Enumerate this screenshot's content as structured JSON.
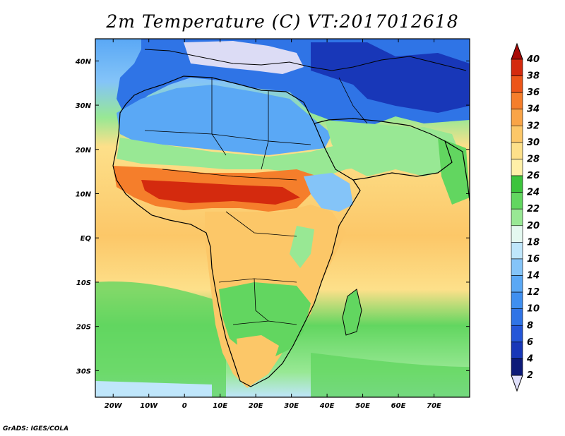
{
  "title": "2m Temperature (C) VT:2017012618",
  "credit": "GrADS: IGES/COLA",
  "map": {
    "region": "Africa and Middle East",
    "lon_range": [
      -25,
      80
    ],
    "lat_range": [
      -36,
      45
    ],
    "lon_ticks": [
      {
        "value": -20,
        "label": "20W"
      },
      {
        "value": -10,
        "label": "10W"
      },
      {
        "value": 0,
        "label": "0"
      },
      {
        "value": 10,
        "label": "10E"
      },
      {
        "value": 20,
        "label": "20E"
      },
      {
        "value": 30,
        "label": "30E"
      },
      {
        "value": 40,
        "label": "40E"
      },
      {
        "value": 50,
        "label": "50E"
      },
      {
        "value": 60,
        "label": "60E"
      },
      {
        "value": 70,
        "label": "70E"
      }
    ],
    "lat_ticks": [
      {
        "value": 40,
        "label": "40N"
      },
      {
        "value": 30,
        "label": "30N"
      },
      {
        "value": 20,
        "label": "20N"
      },
      {
        "value": 10,
        "label": "10N"
      },
      {
        "value": 0,
        "label": "EQ"
      },
      {
        "value": -10,
        "label": "10S"
      },
      {
        "value": -20,
        "label": "20S"
      },
      {
        "value": -30,
        "label": "30S"
      }
    ],
    "colorbar": [
      {
        "label": "2",
        "color": "#0d1a78"
      },
      {
        "label": "4",
        "color": "#1837b8"
      },
      {
        "label": "6",
        "color": "#2456d8"
      },
      {
        "label": "8",
        "color": "#2f74e6"
      },
      {
        "label": "10",
        "color": "#3f8ff0"
      },
      {
        "label": "12",
        "color": "#5aa8f5"
      },
      {
        "label": "14",
        "color": "#84c4f8"
      },
      {
        "label": "16",
        "color": "#bfe6fb"
      },
      {
        "label": "18",
        "color": "#e4f8f0"
      },
      {
        "label": "20",
        "color": "#98e894"
      },
      {
        "label": "22",
        "color": "#62d660"
      },
      {
        "label": "24",
        "color": "#3cc43c"
      },
      {
        "label": "26",
        "color": "#fff0a8"
      },
      {
        "label": "28",
        "color": "#fde08a"
      },
      {
        "label": "30",
        "color": "#fcc768"
      },
      {
        "label": "32",
        "color": "#f9a447"
      },
      {
        "label": "34",
        "color": "#f57e2b"
      },
      {
        "label": "36",
        "color": "#ec5519"
      },
      {
        "label": "38",
        "color": "#d42a0e"
      },
      {
        "label": "40",
        "color": "#a80a06"
      }
    ],
    "low_arrow_color": "#e0e0fb",
    "high_arrow_color": "#a80a06",
    "colors": {
      "cold_land": "#5a8fe0",
      "very_cold": "#2456d8",
      "mild": "#98e894",
      "warm_ocean": "#fde08a",
      "hot": "#f57e2b",
      "very_hot": "#d42a0e",
      "outside": "#dcdcf5"
    }
  }
}
